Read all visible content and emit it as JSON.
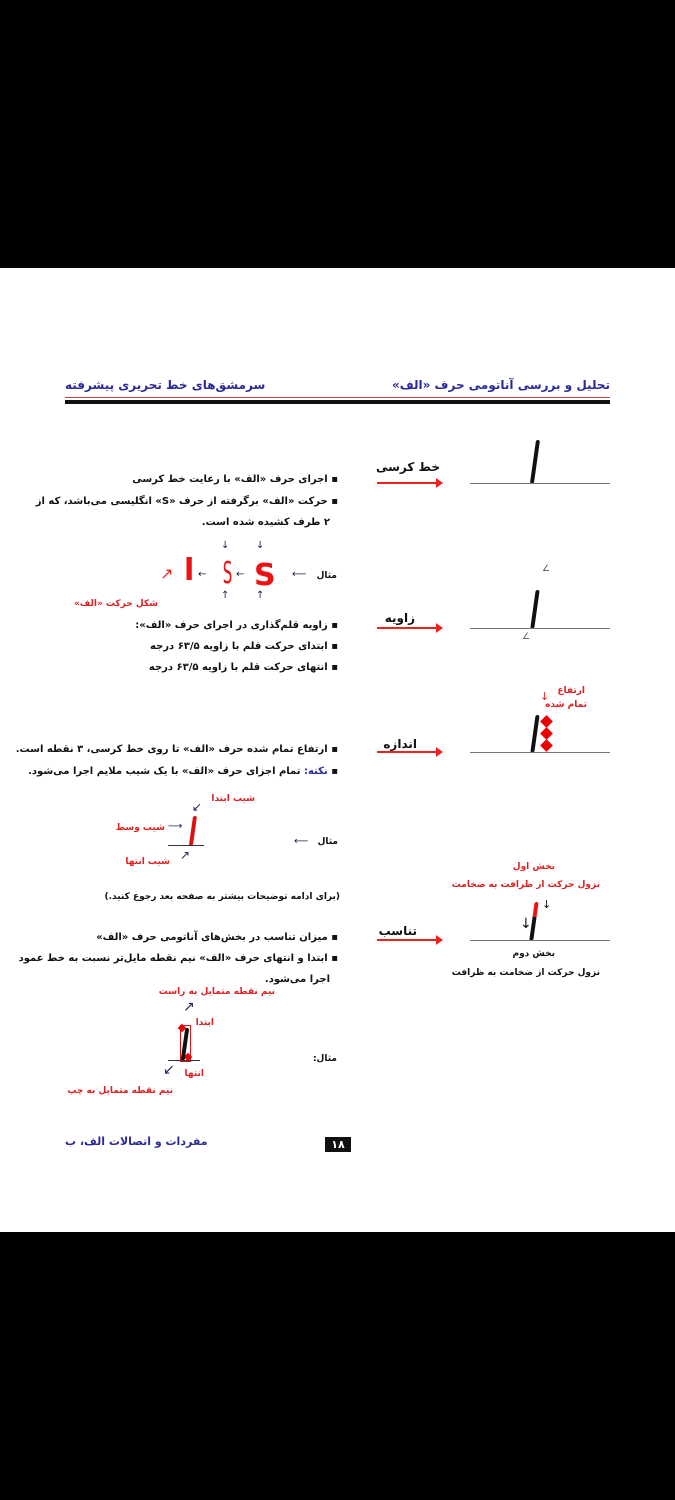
{
  "header": {
    "right_title": "تحلیل و بررسی آناتومی حرف «الف»",
    "left_title": "سرمشق‌های خط تحریری پیشرفته"
  },
  "sections": [
    {
      "label": "خط کرسی",
      "bullets": [
        "اجرای حرف «الف» با رعایت خط کرسی",
        "حرکت «الف» برگرفته از حرف «S» انگلیسی می‌باشد، که از",
        "۲ طرف کشیده شده است."
      ]
    },
    {
      "label": "زاویه",
      "bullets": [
        "زاویه قلم‌گذاری در اجرای حرف «الف»:",
        "ابتدای حرکت قلم با زاویه ۶۳/۵ درجه",
        "انتهای حرکت قلم با زاویه ۶۳/۵ درجه"
      ]
    },
    {
      "label": "اندازه",
      "bullets": [
        "ارتفاع تمام شده حرف «الف» تا روی خط کرسی، ۳ نقطه است.",
        "تمام اجزای حرف «الف» با یک شیب ملایم اجرا می‌شود."
      ],
      "note_prefix": "نکته:",
      "height_label_1": "ارتفاع",
      "height_label_2": "تمام شده"
    },
    {
      "label": "تناسب",
      "bullets": [
        "میزان تناسب در بخش‌های آناتومی حرف «الف»",
        "ابتدا و انتهای حرف «الف» نیم نقطه مایل‌تر نسبت به خط عمود",
        "اجرا می‌شود."
      ],
      "part1": "بخش اول",
      "part1_desc": "نزول حرکت از ظرافت به ضخامت",
      "part2": "بخش دوم",
      "part2_desc": "نزول حرکت از ضخامت به ظرافت"
    }
  ],
  "example1": {
    "label": "مثال",
    "glyph_s": "S",
    "glyph_alef": "ا",
    "caption": "شکل حرکت «الف»"
  },
  "example2": {
    "label": "مثال",
    "slope_start": "شیب ابتدا",
    "slope_mid": "شیب وسط",
    "slope_end": "شیب انتها"
  },
  "continue_note": "(برای ادامه توضیحات بیشتر به صفحه بعد رجوع کنید.)",
  "example3": {
    "label": "مثال:",
    "start": "ابتدا",
    "end": "انتها",
    "tilt_right": "نیم نقطه متمایل به راست",
    "tilt_left": "نیم نقطه متمایل به چپ"
  },
  "footer": {
    "chapter": "مفردات و اتصالات الف، ب",
    "page_number": "۱۸"
  },
  "colors": {
    "accent_red": "#e22",
    "title_blue": "#2a2a9a"
  }
}
